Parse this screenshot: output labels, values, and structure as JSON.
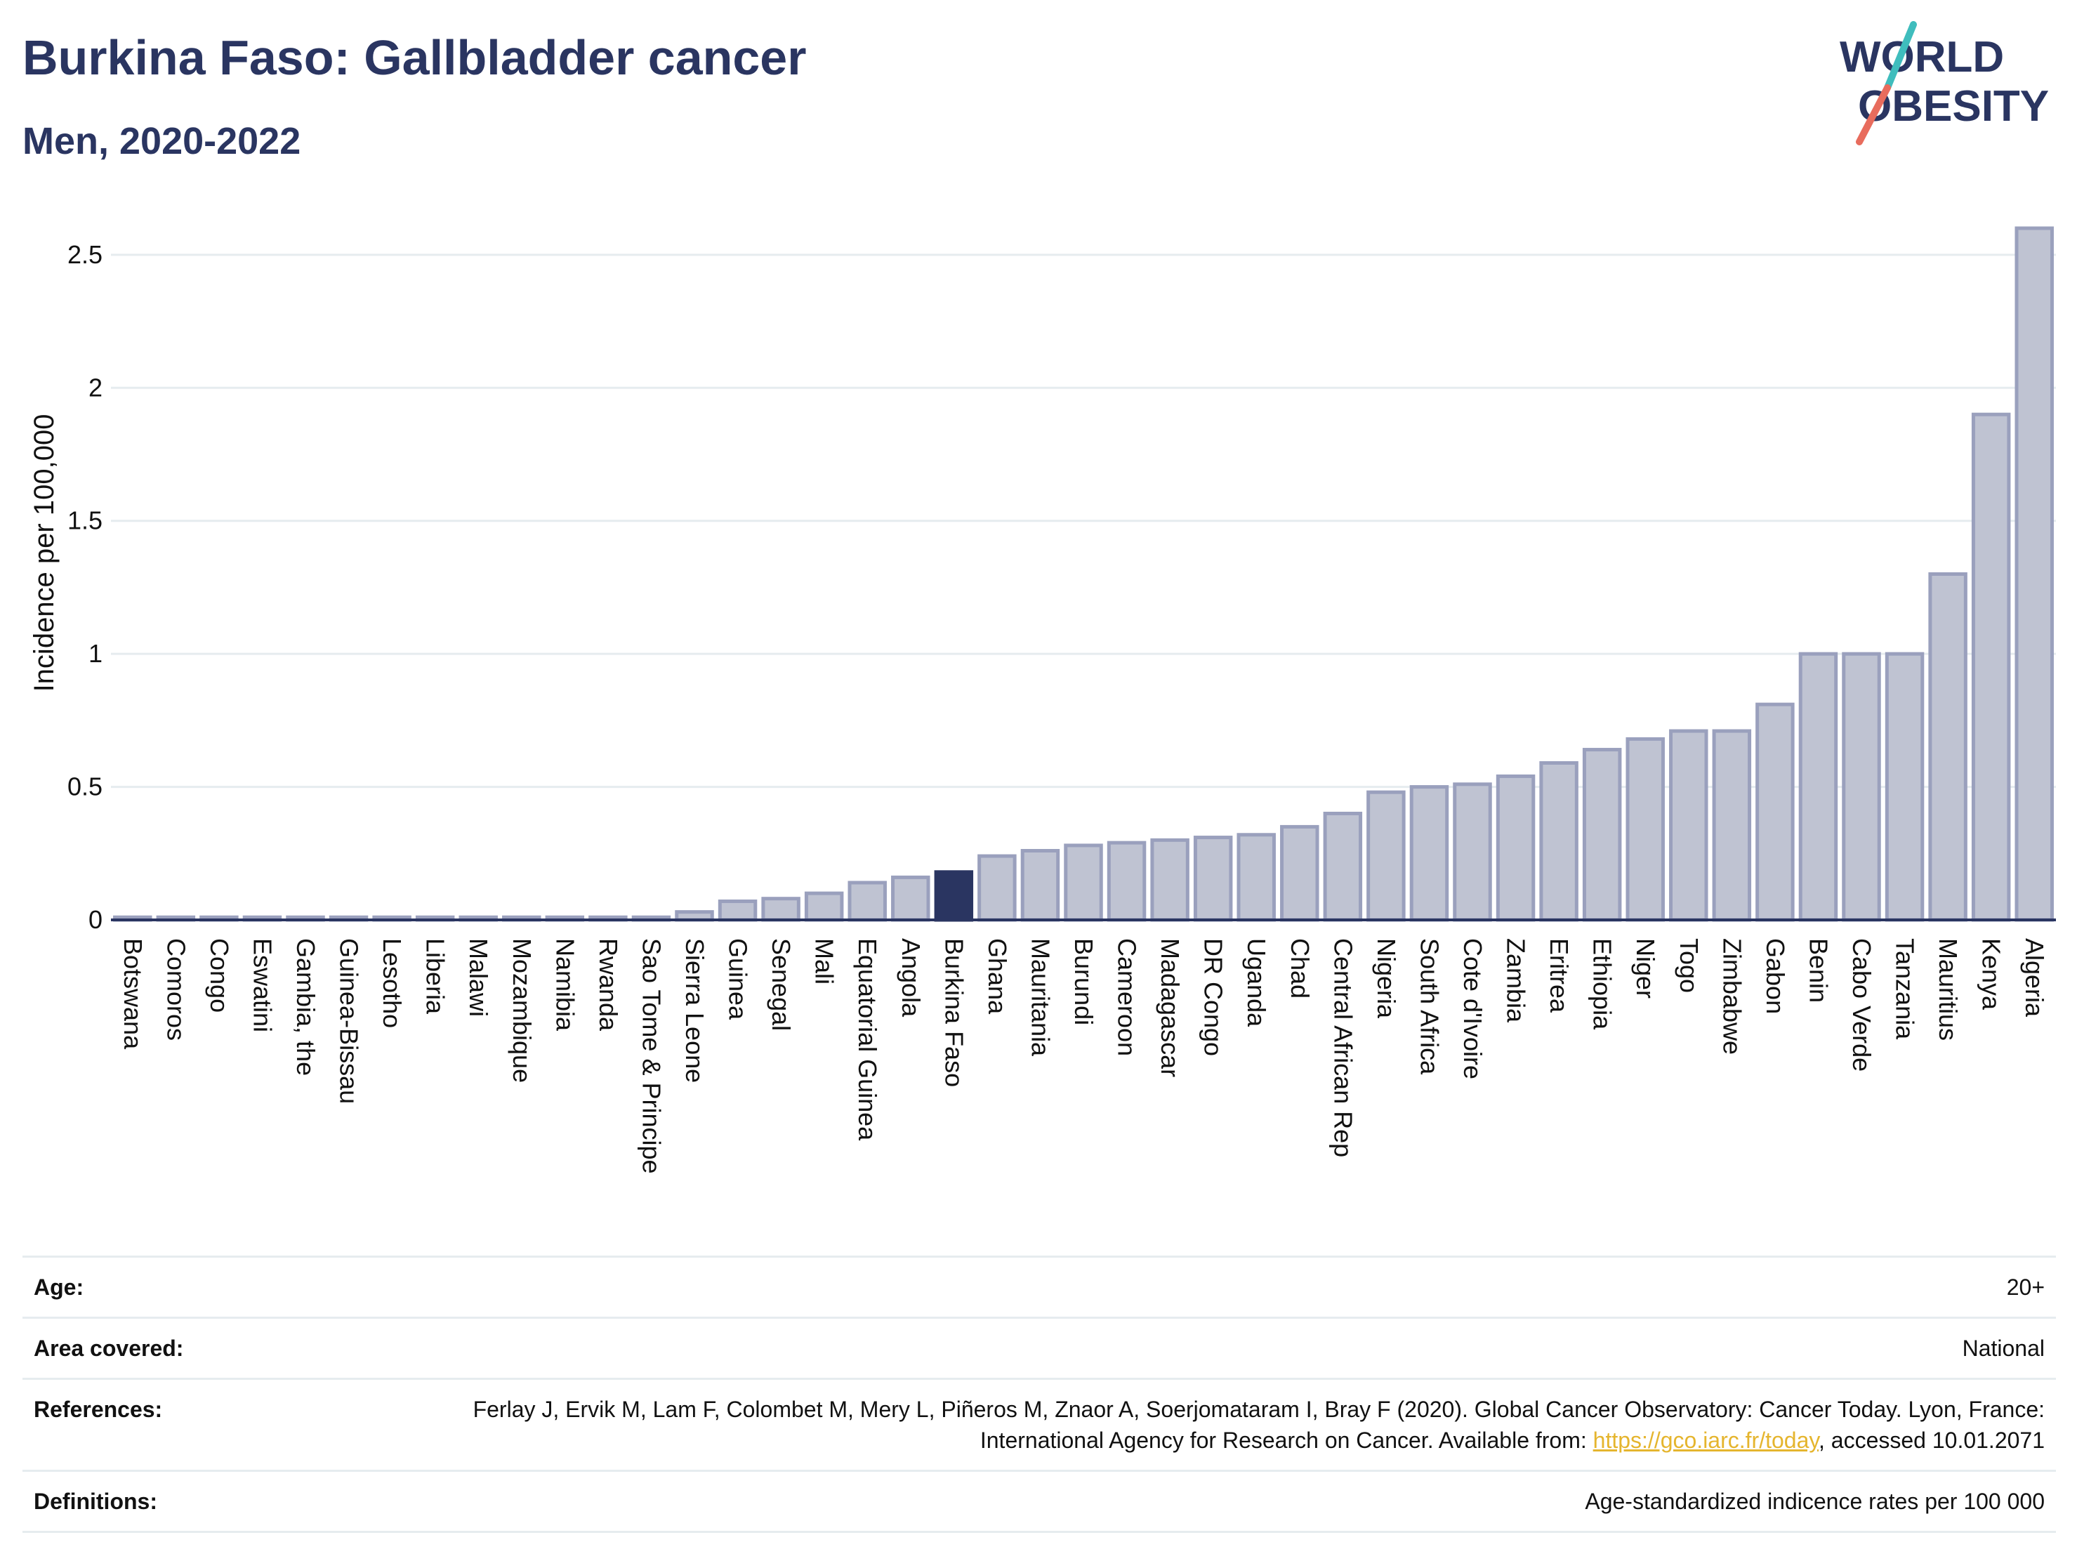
{
  "header": {
    "title": "Burkina Faso: Gallbladder cancer",
    "subtitle": "Men, 2020-2022",
    "logo_line1": "WORLD",
    "logo_line2": "OBESITY"
  },
  "colors": {
    "bar_fill": "#bfc3d2",
    "bar_stroke": "#9aa0bd",
    "highlight": "#2a3561",
    "grid": "#e6ecef",
    "text": "#2a3561",
    "link": "#e5b52e",
    "logo_teal": "#3fbdbd",
    "logo_coral": "#e86c5d"
  },
  "chart_data": {
    "type": "bar",
    "ylabel": "Incidence per 100,000",
    "xlabel": "",
    "ylim": [
      0,
      2.6
    ],
    "yticks": [
      0,
      0.5,
      1,
      1.5,
      2,
      2.5
    ],
    "ytick_labels": [
      "0",
      "0.5",
      "1",
      "1.5",
      "2",
      "2.5"
    ],
    "grid": true,
    "highlight_category": "Burkina Faso",
    "categories": [
      "Botswana",
      "Comoros",
      "Congo",
      "Eswatini",
      "Gambia, the",
      "Guinea-Bissau",
      "Lesotho",
      "Liberia",
      "Malawi",
      "Mozambique",
      "Namibia",
      "Rwanda",
      "Sao Tome & Principe",
      "Sierra Leone",
      "Guinea",
      "Senegal",
      "Mali",
      "Equatorial Guinea",
      "Angola",
      "Burkina Faso",
      "Ghana",
      "Mauritania",
      "Burundi",
      "Cameroon",
      "Madagascar",
      "DR Congo",
      "Uganda",
      "Chad",
      "Central African Rep",
      "Nigeria",
      "South Africa",
      "Cote d'Ivoire",
      "Zambia",
      "Eritrea",
      "Ethiopia",
      "Niger",
      "Togo",
      "Zimbabwe",
      "Gabon",
      "Benin",
      "Cabo Verde",
      "Tanzania",
      "Mauritius",
      "Kenya",
      "Algeria"
    ],
    "values": [
      0.01,
      0.01,
      0.01,
      0.01,
      0.01,
      0.01,
      0.01,
      0.01,
      0.01,
      0.01,
      0.01,
      0.01,
      0.01,
      0.03,
      0.07,
      0.08,
      0.1,
      0.14,
      0.16,
      0.18,
      0.24,
      0.26,
      0.28,
      0.29,
      0.3,
      0.31,
      0.32,
      0.35,
      0.4,
      0.48,
      0.5,
      0.51,
      0.54,
      0.59,
      0.64,
      0.68,
      0.71,
      0.71,
      0.81,
      1.0,
      1.0,
      1.0,
      1.3,
      1.9,
      2.6
    ]
  },
  "info": {
    "age_label": "Age:",
    "age_value": "20+",
    "area_label": "Area covered:",
    "area_value": "National",
    "references_label": "References:",
    "references_text_1": "Ferlay J, Ervik M, Lam F, Colombet M, Mery L, Piñeros M, Znaor A, Soerjomataram I, Bray F (2020). Global Cancer Observatory: Cancer Today. Lyon, France: International Agency for Research on Cancer. Available from: ",
    "references_link": "https://gco.iarc.fr/today",
    "references_text_2": ", accessed 10.01.2071",
    "definitions_label": "Definitions:",
    "definitions_value": "Age-standardized indicence rates per 100 000"
  }
}
